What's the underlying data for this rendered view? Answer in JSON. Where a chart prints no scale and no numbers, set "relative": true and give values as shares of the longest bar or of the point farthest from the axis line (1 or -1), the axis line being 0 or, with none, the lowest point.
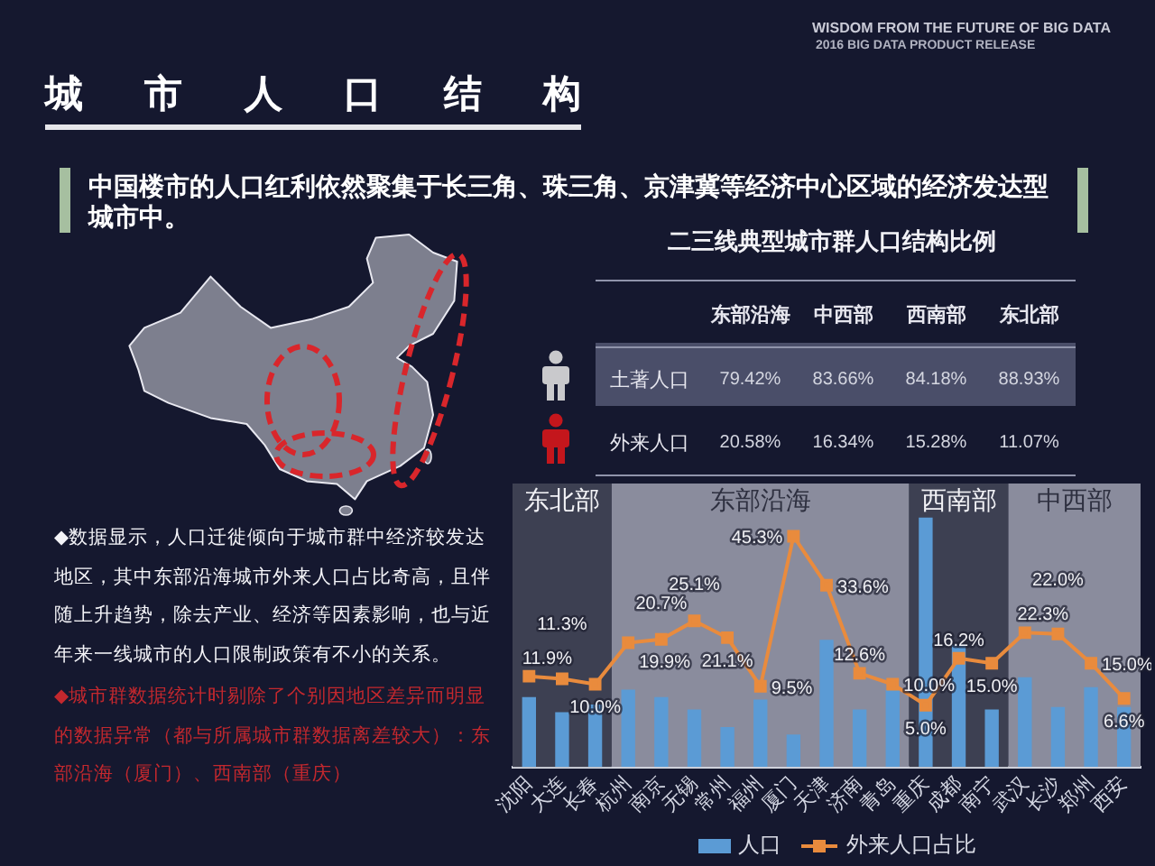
{
  "chart_data": [
    {
      "type": "other",
      "title": "城市人口结构",
      "subtitle": "中国楼市的人口红利依然聚集于长三角、珠三角、京津冀等经济中心区域的经济发达型城市中。",
      "annotations": [
        "WISDOM FROM THE FUTURE OF BIG DATA",
        "2016 BIG DATA PRODUCT RELEASE",
        "◆数据显示，人口迁徙倾向于城市群中经济较发达地区，其中东部沿海城市外来人口占比奇高，且伴随上升趋势，除去产业、经济等因素影响，也与近年来一线城市的人口限制政策有不小的关系。",
        "◆城市群数据统计时剔除了个别因地区差异而明显的数据异常（都与所属城市群数据离差较大）：东部沿海（厦门）、西南部（重庆）"
      ]
    },
    {
      "type": "other",
      "title": "二三线典型城市群人口结构比例",
      "categories": [
        "东部沿海",
        "中西部",
        "西南部",
        "东北部"
      ],
      "series": [
        {
          "name": "土著人口",
          "values": [
            79.42,
            83.66,
            84.18,
            88.93
          ],
          "value_labels": [
            "79.42%",
            "83.66%",
            "84.18%",
            "88.93%"
          ]
        },
        {
          "name": "外来人口",
          "values": [
            20.58,
            16.34,
            15.28,
            11.07
          ],
          "value_labels": [
            "20.58%",
            "16.34%",
            "15.28%",
            "11.07%"
          ]
        }
      ]
    },
    {
      "type": "bar",
      "relative": true,
      "categories": [
        "沈阳",
        "大连",
        "长春",
        "杭州",
        "南京",
        "无锡",
        "常州",
        "福州",
        "厦门",
        "天津",
        "济南",
        "青岛",
        "重庆",
        "成都",
        "南宁",
        "武汉",
        "长沙",
        "郑州",
        "西安"
      ],
      "series": [
        {
          "name": "人口",
          "type": "bar",
          "color": "#5b9bd5",
          "values": [
            0.28,
            0.22,
            0.25,
            0.31,
            0.28,
            0.23,
            0.16,
            0.27,
            0.13,
            0.51,
            0.23,
            0.31,
            1,
            0.49,
            0.23,
            0.36,
            0.24,
            0.32,
            0.24
          ]
        }
      ],
      "bands": [
        {
          "axis": "x",
          "from": "沈阳",
          "to": "长春",
          "label": "东北部",
          "color": "#3d4052"
        },
        {
          "axis": "x",
          "from": "杭州",
          "to": "青岛",
          "label": "东部沿海",
          "color": "#8a8c9d"
        },
        {
          "axis": "x",
          "from": "重庆",
          "to": "南宁",
          "label": "西南部",
          "color": "#3d4052"
        },
        {
          "axis": "x",
          "from": "武汉",
          "to": "西安",
          "label": "中西部",
          "color": "#8a8c9d"
        }
      ],
      "legend": "bottom",
      "tick_labels": "x"
    },
    {
      "type": "line",
      "categories": [
        "沈阳",
        "大连",
        "长春",
        "杭州",
        "南京",
        "无锡",
        "常州",
        "福州",
        "厦门",
        "天津",
        "济南",
        "青岛",
        "重庆",
        "成都",
        "南宁",
        "武汉",
        "长沙",
        "郑州",
        "西安"
      ],
      "series": [
        {
          "name": "外来人口占比",
          "color": "#e98b3d",
          "values": [
            11.9,
            11.3,
            10.0,
            19.9,
            20.7,
            25.1,
            21.1,
            9.5,
            45.3,
            33.6,
            12.6,
            10.0,
            5.0,
            16.2,
            15.0,
            22.3,
            22.0,
            15.0,
            6.6
          ],
          "value_labels": [
            "11.9%",
            "11.3%",
            "10.0%",
            "19.9%",
            "20.7%",
            "25.1%",
            "21.1%",
            "9.5%",
            "45.3%",
            "33.6%",
            "12.6%",
            "10.0%",
            "5.0%",
            "16.2%",
            "15.0%",
            "22.3%",
            "22.0%",
            "15.0%",
            "6.6%"
          ]
        }
      ],
      "marker": "square",
      "legend": "bottom",
      "tick_labels": false
    }
  ]
}
